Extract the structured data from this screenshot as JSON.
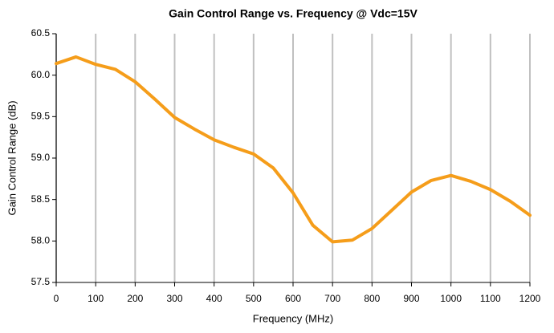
{
  "chart_data": {
    "type": "line",
    "title": "Gain Control Range vs. Frequency @ Vdc=15V",
    "x_label": "Frequency (MHz)",
    "y_label": "Gain Control Range (dB)",
    "x": [
      0,
      50,
      100,
      150,
      200,
      250,
      300,
      350,
      400,
      450,
      500,
      550,
      600,
      650,
      700,
      750,
      800,
      850,
      900,
      950,
      1000,
      1050,
      1100,
      1150,
      1200
    ],
    "series": [
      {
        "name": "Gain Control Range",
        "color": "#f59d1a",
        "values": [
          60.14,
          60.22,
          60.13,
          60.07,
          59.92,
          59.71,
          59.49,
          59.35,
          59.22,
          59.13,
          59.05,
          58.88,
          58.58,
          58.19,
          57.99,
          58.01,
          58.15,
          58.37,
          58.59,
          58.73,
          58.79,
          58.72,
          58.62,
          58.48,
          58.31
        ]
      }
    ],
    "xlim": [
      0,
      1200
    ],
    "xticks": [
      0,
      100,
      200,
      300,
      400,
      500,
      600,
      700,
      800,
      900,
      1000,
      1100,
      1200
    ],
    "ylim": [
      57.5,
      60.5
    ],
    "yticks": [
      57.5,
      {
        "value": 58,
        "label": "58.0"
      },
      58.5,
      {
        "value": 59,
        "label": "59.0"
      },
      59.5,
      {
        "value": 60,
        "label": "60.0"
      },
      60.5
    ],
    "grid": "x"
  }
}
